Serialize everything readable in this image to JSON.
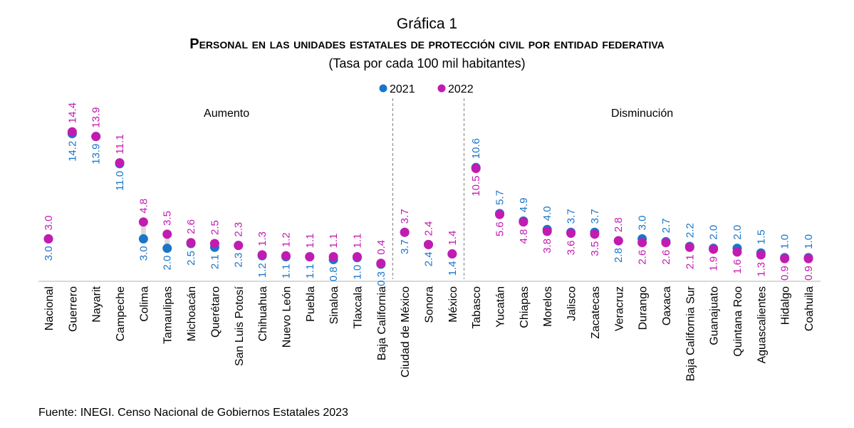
{
  "chart_data": {
    "type": "dot-plot",
    "title": "Gráfica 1",
    "subtitle": "Personal en las unidades estatales de protección civil por entidad federativa",
    "unit_note": "(Tasa por cada 100 mil habitantes)",
    "xlabel": "",
    "ylabel": "",
    "ylim": [
      0,
      15
    ],
    "grid": false,
    "legend": {
      "position": "top-center",
      "entries": [
        "2021",
        "2022"
      ]
    },
    "colors": {
      "2021": "#1a75c9",
      "2022": "#c21bb1",
      "connector": "#d9d9d9",
      "axis": "#d9d9d9",
      "divider": "#808080"
    },
    "sections": [
      {
        "label": "Aumento",
        "from": "Guerrero",
        "to": "Baja California"
      },
      {
        "label": "",
        "from": "Ciudad de México",
        "to": "México"
      },
      {
        "label": "Disminución",
        "from": "Tabasco",
        "to": "Coahuila"
      }
    ],
    "categories": [
      "Nacional",
      "Guerrero",
      "Nayarit",
      "Campeche",
      "Colima",
      "Tamaulipas",
      "Michoacán",
      "Querétaro",
      "San Luis Potosí",
      "Chihuahua",
      "Nuevo León",
      "Puebla",
      "Sinaloa",
      "Tlaxcala",
      "Baja California",
      "Ciudad de México",
      "Sonora",
      "México",
      "Tabasco",
      "Yucatán",
      "Chiapas",
      "Morelos",
      "Jalisco",
      "Zacatecas",
      "Veracruz",
      "Durango",
      "Oaxaca",
      "Baja California Sur",
      "Guanajuato",
      "Quintana Roo",
      "Aguascalientes",
      "Hidalgo",
      "Coahuila"
    ],
    "series": [
      {
        "name": "2021",
        "values": [
          3.0,
          14.2,
          13.9,
          11.0,
          3.0,
          2.0,
          2.5,
          2.1,
          2.3,
          1.2,
          1.1,
          1.1,
          0.8,
          1.0,
          0.3,
          3.7,
          2.4,
          1.4,
          10.6,
          5.7,
          4.9,
          4.0,
          3.7,
          3.7,
          2.8,
          3.0,
          2.7,
          2.2,
          2.0,
          2.0,
          1.5,
          1.0,
          1.0
        ]
      },
      {
        "name": "2022",
        "values": [
          3.0,
          14.4,
          13.9,
          11.1,
          4.8,
          3.5,
          2.6,
          2.5,
          2.3,
          1.3,
          1.2,
          1.1,
          1.1,
          1.1,
          0.4,
          3.7,
          2.4,
          1.4,
          10.5,
          5.6,
          4.8,
          3.8,
          3.6,
          3.5,
          2.8,
          2.6,
          2.6,
          2.1,
          1.9,
          1.6,
          1.3,
          0.9,
          0.9
        ]
      }
    ],
    "source": "Fuente: INEGI. Censo Nacional de Gobiernos Estatales 2023"
  }
}
